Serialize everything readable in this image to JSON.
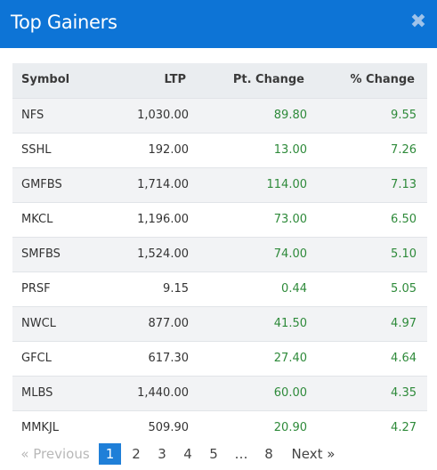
{
  "modal": {
    "title": "Top Gainers",
    "close_glyph": "✖"
  },
  "table": {
    "headers": {
      "symbol": "Symbol",
      "ltp": "LTP",
      "pt_change": "Pt. Change",
      "pct_change": "% Change"
    },
    "rows": [
      {
        "symbol": "NFS",
        "ltp": "1,030.00",
        "pt_change": "89.80",
        "pct_change": "9.55"
      },
      {
        "symbol": "SSHL",
        "ltp": "192.00",
        "pt_change": "13.00",
        "pct_change": "7.26"
      },
      {
        "symbol": "GMFBS",
        "ltp": "1,714.00",
        "pt_change": "114.00",
        "pct_change": "7.13"
      },
      {
        "symbol": "MKCL",
        "ltp": "1,196.00",
        "pt_change": "73.00",
        "pct_change": "6.50"
      },
      {
        "symbol": "SMFBS",
        "ltp": "1,524.00",
        "pt_change": "74.00",
        "pct_change": "5.10"
      },
      {
        "symbol": "PRSF",
        "ltp": "9.15",
        "pt_change": "0.44",
        "pct_change": "5.05"
      },
      {
        "symbol": "NWCL",
        "ltp": "877.00",
        "pt_change": "41.50",
        "pct_change": "4.97"
      },
      {
        "symbol": "GFCL",
        "ltp": "617.30",
        "pt_change": "27.40",
        "pct_change": "4.64"
      },
      {
        "symbol": "MLBS",
        "ltp": "1,440.00",
        "pt_change": "60.00",
        "pct_change": "4.35"
      },
      {
        "symbol": "MMKJL",
        "ltp": "509.90",
        "pt_change": "20.90",
        "pct_change": "4.27"
      }
    ]
  },
  "pagination": {
    "previous": "«  Previous",
    "pages": [
      "1",
      "2",
      "3",
      "4",
      "5"
    ],
    "ellipsis": "…",
    "last_page": "8",
    "next": "Next  »",
    "current_page": "1"
  },
  "colors": {
    "header_bg": "#0d74d6",
    "positive": "#2e8a3a",
    "active_page": "#1f7fd8"
  }
}
